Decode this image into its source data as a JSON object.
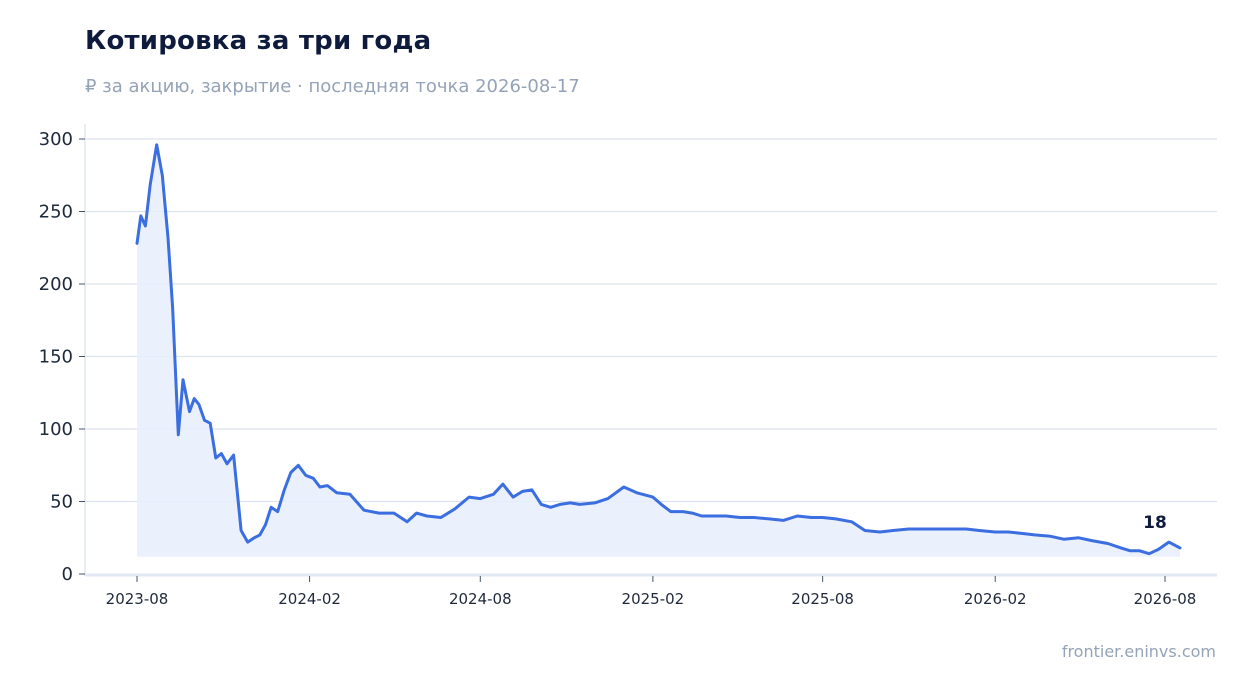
{
  "chart_data": {
    "type": "area",
    "title": "Котировка за три года",
    "subtitle": "₽ за акцию, закрытие · последняя точка 2026-08-17",
    "xlabel": "",
    "ylabel": "",
    "x_tick_labels": [
      "2023-08",
      "2024-02",
      "2024-08",
      "2025-02",
      "2025-08",
      "2026-02",
      "2026-08"
    ],
    "y_tick_labels": [
      "0",
      "50",
      "100",
      "150",
      "200",
      "250",
      "300"
    ],
    "xlim": [
      "2023-08-01",
      "2026-08-17"
    ],
    "ylim": [
      0,
      310
    ],
    "grid": "horizontal",
    "last_value_label": "18",
    "colors": {
      "line": "#3b6ee0",
      "fill": "#e8effc",
      "grid": "#dde3ee",
      "axis": "#e2e8f4"
    },
    "series": [
      {
        "x": [
          "2023-08-01",
          "2023-08-05",
          "2023-08-10",
          "2023-08-15",
          "2023-08-22",
          "2023-08-28",
          "2023-09-03",
          "2023-09-08",
          "2023-09-14",
          "2023-09-19",
          "2023-09-26",
          "2023-10-01",
          "2023-10-06",
          "2023-10-12",
          "2023-10-18",
          "2023-10-24",
          "2023-10-30",
          "2023-11-05",
          "2023-11-12",
          "2023-11-20",
          "2023-11-27",
          "2023-12-04",
          "2023-12-10",
          "2023-12-16",
          "2023-12-22",
          "2023-12-29",
          "2024-01-05",
          "2024-01-12",
          "2024-01-20",
          "2024-01-28",
          "2024-02-05",
          "2024-02-12",
          "2024-02-20",
          "2024-03-01",
          "2024-03-15",
          "2024-03-30",
          "2024-04-15",
          "2024-05-01",
          "2024-05-15",
          "2024-05-25",
          "2024-06-05",
          "2024-06-20",
          "2024-07-05",
          "2024-07-20",
          "2024-08-01",
          "2024-08-15",
          "2024-08-25",
          "2024-09-05",
          "2024-09-15",
          "2024-09-25",
          "2024-10-05",
          "2024-10-15",
          "2024-10-25",
          "2024-11-05",
          "2024-11-15",
          "2024-12-01",
          "2024-12-15",
          "2025-01-01",
          "2025-01-15",
          "2025-02-01",
          "2025-02-10",
          "2025-02-20",
          "2025-03-05",
          "2025-03-15",
          "2025-03-25",
          "2025-04-05",
          "2025-04-20",
          "2025-05-05",
          "2025-05-20",
          "2025-06-05",
          "2025-06-20",
          "2025-07-05",
          "2025-07-20",
          "2025-08-01",
          "2025-08-15",
          "2025-09-01",
          "2025-09-15",
          "2025-10-01",
          "2025-10-15",
          "2025-11-01",
          "2025-11-15",
          "2025-12-01",
          "2025-12-15",
          "2026-01-01",
          "2026-01-15",
          "2026-02-01",
          "2026-02-15",
          "2026-03-01",
          "2026-03-15",
          "2026-04-01",
          "2026-04-15",
          "2026-05-01",
          "2026-05-15",
          "2026-06-01",
          "2026-06-15",
          "2026-06-25",
          "2026-07-05",
          "2026-07-15",
          "2026-07-25",
          "2026-08-05",
          "2026-08-17"
        ],
        "values": [
          228,
          247,
          240,
          268,
          296,
          275,
          232,
          184,
          96,
          134,
          112,
          121,
          117,
          106,
          104,
          80,
          83,
          76,
          82,
          30,
          22,
          25,
          27,
          34,
          46,
          43,
          58,
          70,
          75,
          68,
          66,
          60,
          61,
          56,
          55,
          44,
          42,
          42,
          36,
          42,
          40,
          39,
          45,
          53,
          52,
          55,
          62,
          53,
          57,
          58,
          48,
          46,
          48,
          49,
          48,
          49,
          52,
          60,
          56,
          53,
          48,
          43,
          43,
          42,
          40,
          40,
          40,
          39,
          39,
          38,
          37,
          40,
          39,
          39,
          38,
          36,
          30,
          29,
          30,
          31,
          31,
          31,
          31,
          31,
          30,
          29,
          29,
          28,
          27,
          26,
          24,
          25,
          23,
          21,
          18,
          16,
          16,
          14,
          17,
          22,
          18
        ]
      }
    ]
  },
  "footer": {
    "source": "frontier.eninvs.com"
  }
}
